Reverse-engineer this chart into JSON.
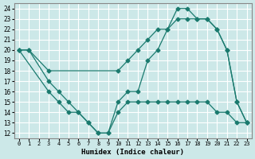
{
  "xlabel": "Humidex (Indice chaleur)",
  "bg_color": "#cce8e8",
  "grid_color": "#ffffff",
  "line_color": "#1a7a6e",
  "xlim": [
    -0.5,
    23.5
  ],
  "ylim": [
    11.5,
    24.5
  ],
  "yticks": [
    12,
    13,
    14,
    15,
    16,
    17,
    18,
    19,
    20,
    21,
    22,
    23,
    24
  ],
  "xticks": [
    0,
    1,
    2,
    3,
    4,
    5,
    6,
    7,
    8,
    9,
    10,
    11,
    12,
    13,
    14,
    15,
    16,
    17,
    18,
    19,
    20,
    21,
    22,
    23
  ],
  "line1_x": [
    0,
    1,
    3,
    10,
    11,
    12,
    13,
    14,
    15,
    16,
    17,
    18,
    19,
    20,
    21,
    22,
    23
  ],
  "line1_y": [
    20,
    20,
    18,
    18,
    19,
    20,
    21,
    22,
    22,
    23,
    23,
    23,
    23,
    22,
    20,
    15,
    13
  ],
  "line2_x": [
    0,
    1,
    3,
    4,
    5,
    6,
    7,
    8,
    9,
    10,
    11,
    12,
    13,
    14,
    15,
    16,
    17,
    18,
    19,
    20,
    21,
    22,
    23
  ],
  "line2_y": [
    20,
    20,
    17,
    16,
    15,
    14,
    13,
    12,
    12,
    15,
    16,
    16,
    19,
    20,
    22,
    24,
    24,
    23,
    23,
    22,
    20,
    15,
    13
  ],
  "line3_x": [
    0,
    3,
    4,
    5,
    6,
    7,
    8,
    9,
    10,
    11,
    12,
    13,
    14,
    15,
    16,
    17,
    18,
    19,
    20,
    21,
    22,
    23
  ],
  "line3_y": [
    20,
    16,
    15,
    14,
    14,
    13,
    12,
    12,
    14,
    15,
    15,
    15,
    15,
    15,
    15,
    15,
    15,
    15,
    14,
    14,
    13,
    13
  ]
}
